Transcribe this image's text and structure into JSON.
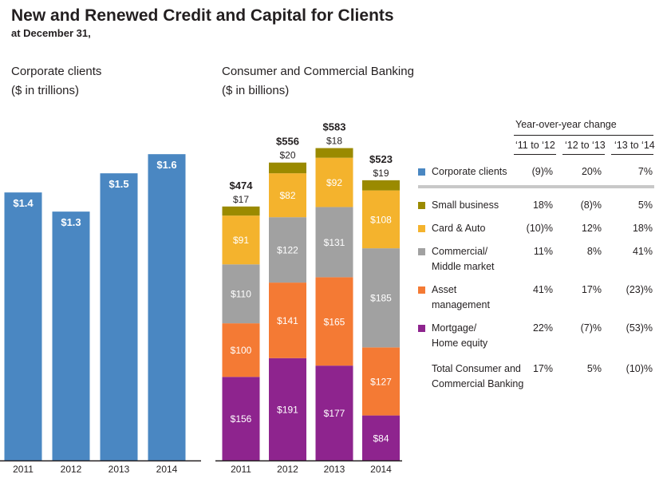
{
  "title": "New and Renewed Credit and Capital for Clients",
  "subtitle": "at December 31,",
  "colors": {
    "corporate": "#4a87c2",
    "small_business": "#9a8a00",
    "card_auto": "#f4b32d",
    "commercial": "#a1a1a1",
    "asset_mgmt": "#f47a34",
    "mortgage": "#8e248e",
    "axis": "#231f20"
  },
  "chart_data": [
    {
      "type": "bar",
      "title_line1": "Corporate clients",
      "title_line2": "($ in trillions)",
      "categories": [
        "2011",
        "2012",
        "2013",
        "2014"
      ],
      "values": [
        1.4,
        1.3,
        1.5,
        1.6
      ],
      "value_labels": [
        "$1.4",
        "$1.3",
        "$1.5",
        "$1.6"
      ],
      "ylim": [
        0,
        1.78
      ]
    },
    {
      "type": "bar",
      "stacked": true,
      "title_line1": "Consumer and Commercial Banking",
      "title_line2": "($ in billions)",
      "categories": [
        "2011",
        "2012",
        "2013",
        "2014"
      ],
      "totals": [
        474,
        556,
        583,
        523
      ],
      "total_labels": [
        "$474",
        "$556",
        "$583",
        "$523"
      ],
      "ylim": [
        0,
        636
      ],
      "series": [
        {
          "name": "Mortgage/ Home equity",
          "color_key": "mortgage",
          "values": [
            156,
            191,
            177,
            84
          ],
          "labels": [
            "$156",
            "$191",
            "$177",
            "$84"
          ],
          "label_position": "inside"
        },
        {
          "name": "Asset management",
          "color_key": "asset_mgmt",
          "values": [
            100,
            141,
            165,
            127
          ],
          "labels": [
            "$100",
            "$141",
            "$165",
            "$127"
          ],
          "label_position": "inside"
        },
        {
          "name": "Commercial/ Middle market",
          "color_key": "commercial",
          "values": [
            110,
            122,
            131,
            185
          ],
          "labels": [
            "$110",
            "$122",
            "$131",
            "$185"
          ],
          "label_position": "inside"
        },
        {
          "name": "Card & Auto",
          "color_key": "card_auto",
          "values": [
            91,
            82,
            92,
            108
          ],
          "labels": [
            "$91",
            "$82",
            "$92",
            "$108"
          ],
          "label_position": "inside"
        },
        {
          "name": "Small business",
          "color_key": "small_business",
          "values": [
            17,
            20,
            18,
            19
          ],
          "labels": [
            "$17",
            "$20",
            "$18",
            "$19"
          ],
          "label_position": "above"
        }
      ]
    }
  ],
  "yoy_table": {
    "header": "Year-over-year change",
    "columns": [
      "‘11 to ‘12",
      "‘12 to ‘13",
      "‘13 to ‘14"
    ],
    "rows": [
      {
        "label_lines": [
          "Corporate clients"
        ],
        "color_key": "corporate",
        "values": [
          "(9)%",
          "20%",
          "7%"
        ]
      },
      {
        "label_lines": [
          "Small business"
        ],
        "color_key": "small_business",
        "values": [
          "18%",
          "(8)%",
          "5%"
        ]
      },
      {
        "label_lines": [
          "Card & Auto"
        ],
        "color_key": "card_auto",
        "values": [
          "(10)%",
          "12%",
          "18%"
        ]
      },
      {
        "label_lines": [
          "Commercial/",
          "Middle market"
        ],
        "color_key": "commercial",
        "values": [
          "11%",
          "8%",
          "41%"
        ]
      },
      {
        "label_lines": [
          "Asset",
          "management"
        ],
        "color_key": "asset_mgmt",
        "values": [
          "41%",
          "17%",
          "(23)%"
        ]
      },
      {
        "label_lines": [
          "Mortgage/",
          "Home equity"
        ],
        "color_key": "mortgage",
        "values": [
          "22%",
          "(7)%",
          "(53)%"
        ]
      },
      {
        "label_lines": [
          "Total Consumer and",
          "Commercial Banking"
        ],
        "color_key": "",
        "values": [
          "17%",
          "5%",
          "(10)%"
        ]
      }
    ]
  }
}
